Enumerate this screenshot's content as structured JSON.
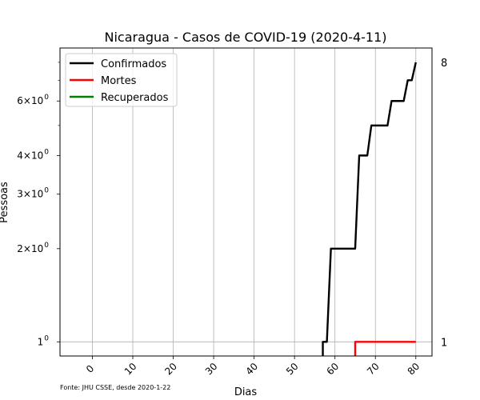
{
  "chart_data": {
    "type": "line",
    "title": "Nicaragua - Casos de COVID-19 (2020-4-11)",
    "xlabel": "Dias",
    "ylabel": "Pessoas",
    "xlim": [
      -8,
      84
    ],
    "ylim": [
      0.9,
      8.9
    ],
    "yscale": "log",
    "grid": "x-major",
    "x_ticks": [
      0,
      10,
      20,
      30,
      40,
      50,
      60,
      70,
      80
    ],
    "x_tick_labels": [
      "0",
      "10",
      "20",
      "30",
      "40",
      "50",
      "60",
      "70",
      "80"
    ],
    "y_ticks": [
      1,
      2,
      3,
      4,
      6
    ],
    "y_tick_labels": [
      {
        "base": "1",
        "exp": "0",
        "full": "1×10^0"
      },
      {
        "base": "2×10",
        "exp": "0",
        "full": "2×10^0"
      },
      {
        "base": "3×10",
        "exp": "0",
        "full": "3×10^0"
      },
      {
        "base": "4×10",
        "exp": "0",
        "full": "4×10^0"
      },
      {
        "base": "6×10",
        "exp": "0",
        "full": "6×10^0"
      }
    ],
    "y_minor_ticks": [
      5,
      7,
      8
    ],
    "legend_position": "top-left",
    "source": "Fonte: JHU CSSE, desde 2020-1-22",
    "end_labels": [
      {
        "value": 8,
        "text": "8"
      },
      {
        "value": 1,
        "text": "1"
      }
    ],
    "series": [
      {
        "name": "Confirmados",
        "color": "#000000",
        "x": [
          57,
          58,
          59,
          60,
          61,
          62,
          63,
          64,
          65,
          66,
          67,
          68,
          69,
          70,
          71,
          72,
          73,
          74,
          75,
          76,
          77,
          78,
          79,
          80
        ],
        "y": [
          1,
          1,
          2,
          2,
          2,
          2,
          2,
          2,
          2,
          4,
          4,
          4,
          5,
          5,
          5,
          5,
          5,
          6,
          6,
          6,
          6,
          7,
          7,
          8
        ]
      },
      {
        "name": "Mortes",
        "color": "#ff0000",
        "x": [
          65,
          66,
          67,
          68,
          69,
          70,
          71,
          72,
          73,
          74,
          75,
          76,
          77,
          78,
          79,
          80
        ],
        "y": [
          1,
          1,
          1,
          1,
          1,
          1,
          1,
          1,
          1,
          1,
          1,
          1,
          1,
          1,
          1,
          1
        ]
      },
      {
        "name": "Recuperados",
        "color": "#008000",
        "x": [],
        "y": []
      }
    ]
  }
}
